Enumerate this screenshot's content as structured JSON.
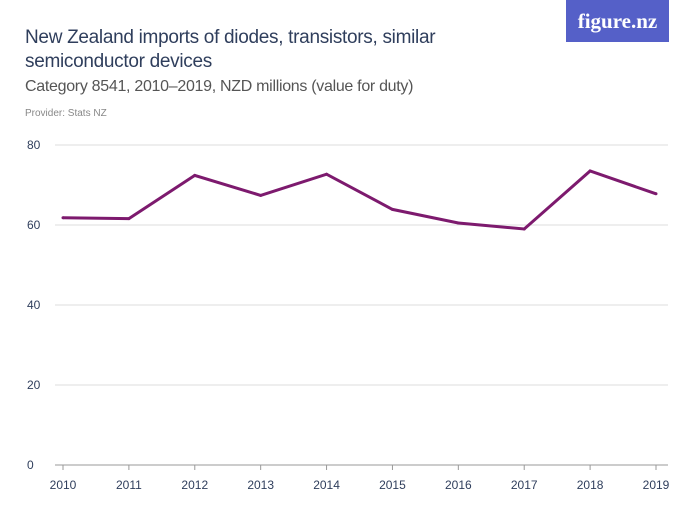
{
  "header": {
    "title": "New Zealand imports of diodes, transistors, similar semiconductor devices",
    "subtitle": "Category 8541, 2010–2019, NZD millions (value for duty)",
    "provider": "Provider: Stats NZ",
    "logo": "figure.nz"
  },
  "chart_data": {
    "type": "line",
    "title": "New Zealand imports of diodes, transistors, similar semiconductor devices",
    "subtitle": "Category 8541, 2010–2019, NZD millions (value for duty)",
    "x": [
      "2010",
      "2011",
      "2012",
      "2013",
      "2014",
      "2015",
      "2016",
      "2017",
      "2018",
      "2019"
    ],
    "series": [
      {
        "values": [
          61.8,
          61.6,
          72.4,
          67.4,
          72.7,
          63.9,
          60.5,
          59.0,
          73.5,
          67.8
        ],
        "color": "#7d1a6e"
      }
    ],
    "ylim": [
      0,
      80
    ],
    "yticks": [
      "0",
      "20",
      "40",
      "60",
      "80"
    ],
    "grid": true,
    "xlabel": "",
    "ylabel": ""
  }
}
